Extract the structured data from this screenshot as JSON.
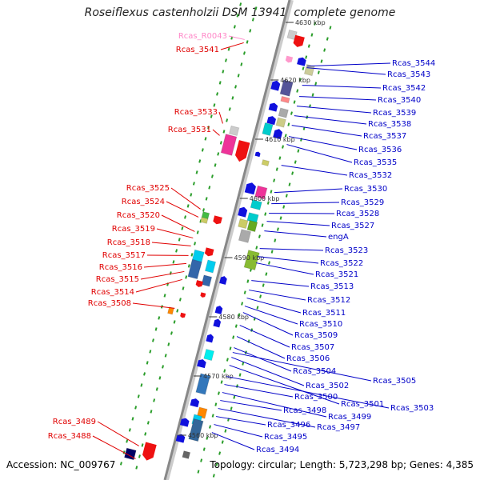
{
  "title": "Roseiflexus castenholzii DSM 13941, complete genome",
  "accession": "Accession: NC_009767",
  "topology": "Topology: circular; Length: 5,723,298 bp; Genes: 4,385",
  "colors": {
    "label_left": "#e00000",
    "label_left_pseudo": "#ff88c8",
    "label_right": "#0000c8",
    "backbone": "#888888",
    "track_dots": "#2a9d2a",
    "gene_forward": "#ee1111",
    "gene_reverse": "#1010dd"
  },
  "ticks": [
    "4630 kbp",
    "4620 kbp",
    "4610 kbp",
    "4600 kbp",
    "4590 kbp",
    "4580 kbp",
    "4570 kbp",
    "4560 kbp"
  ],
  "left_labels": [
    "Rcas_R0043",
    "Rcas_3541",
    "Rcas_3533",
    "Rcas_3531",
    "Rcas_3525",
    "Rcas_3524",
    "Rcas_3520",
    "Rcas_3519",
    "Rcas_3518",
    "Rcas_3517",
    "Rcas_3516",
    "Rcas_3515",
    "Rcas_3514",
    "Rcas_3508",
    "Rcas_3489",
    "Rcas_3488"
  ],
  "right_labels": [
    "Rcas_3544",
    "Rcas_3543",
    "Rcas_3542",
    "Rcas_3540",
    "Rcas_3539",
    "Rcas_3538",
    "Rcas_3537",
    "Rcas_3536",
    "Rcas_3535",
    "Rcas_3532",
    "Rcas_3530",
    "Rcas_3529",
    "Rcas_3528",
    "Rcas_3527",
    "engA",
    "Rcas_3523",
    "Rcas_3522",
    "Rcas_3521",
    "Rcas_3513",
    "Rcas_3512",
    "Rcas_3511",
    "Rcas_3510",
    "Rcas_3509",
    "Rcas_3507",
    "Rcas_3506",
    "Rcas_3504",
    "Rcas_3505",
    "Rcas_3502",
    "Rcas_3501",
    "Rcas_3503",
    "Rcas_3500",
    "Rcas_3499",
    "Rcas_3498",
    "Rcas_3497",
    "Rcas_3496",
    "Rcas_3495",
    "Rcas_3494"
  ]
}
